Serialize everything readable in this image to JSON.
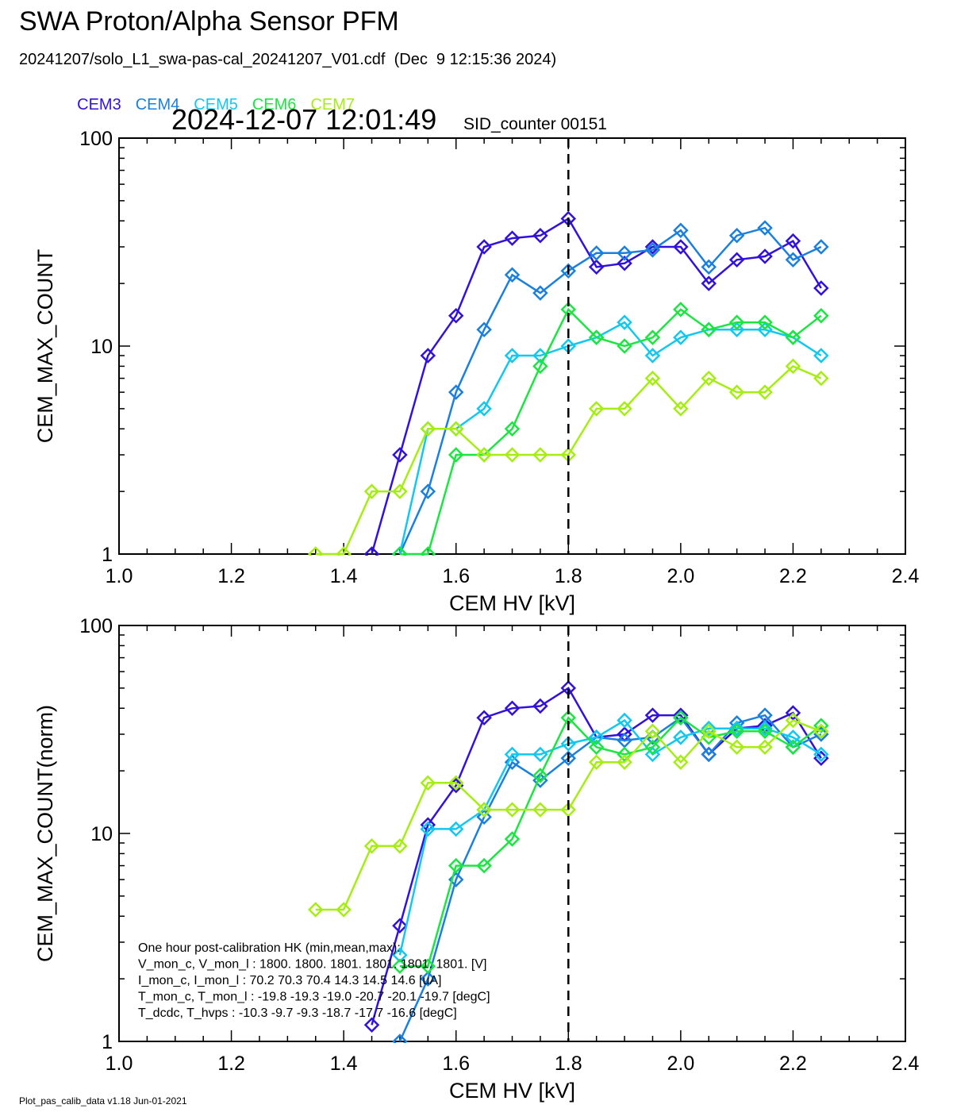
{
  "header": {
    "title": "SWA Proton/Alpha Sensor PFM",
    "subtitle": "20241207/solo_L1_swa-pas-cal_20241207_V01.cdf  (Dec  9 12:15:36 2024)",
    "timestamp": "2024-12-07 12:01:49",
    "sid_counter": "SID_counter 00151"
  },
  "legend": [
    {
      "name": "CEM3",
      "color": "#3311dd"
    },
    {
      "name": "CEM4",
      "color": "#1a80e0"
    },
    {
      "name": "CEM5",
      "color": "#11c8f0"
    },
    {
      "name": "CEM6",
      "color": "#19e640"
    },
    {
      "name": "CEM7",
      "color": "#a6ee11"
    }
  ],
  "hk_box": {
    "lines": [
      "One hour post-calibration HK (min,mean,max):",
      "V_mon_c, V_mon_l :    1800.  1800.  1801.       1801.  1801.  1801.  [V]",
      "I_mon_c,  I_mon_l :      70.2   70.3   70.4        14.3   14.5   14.6  [uA]",
      "T_mon_c, T_mon_l :   -19.8  -19.3  -19.0       -20.7  -20.1  -19.7  [degC]",
      "T_dcdc,    T_hvps :    -10.3   -9.7   -9.3        -18.7  -17.7  -16.6  [degC]"
    ]
  },
  "footer": "Plot_pas_calib_data v1.18 Jun-01-2021",
  "chart_data": [
    {
      "type": "line",
      "xlabel": "CEM HV [kV]",
      "ylabel": "CEM_MAX_COUNT",
      "xlim": [
        1.0,
        2.4
      ],
      "ylim": [
        1,
        100
      ],
      "yscale": "log",
      "x_ticks": [
        "1.0",
        "1.2",
        "1.4",
        "1.6",
        "1.8",
        "2.0",
        "2.2",
        "2.4"
      ],
      "y_ticks": [
        "1",
        "10",
        "100"
      ],
      "marker": "diamond",
      "vline": 1.8,
      "series": [
        {
          "name": "CEM3",
          "x": [
            1.45,
            1.5,
            1.55,
            1.6,
            1.65,
            1.7,
            1.75,
            1.8,
            1.85,
            1.9,
            1.95,
            2.0,
            2.05,
            2.1,
            2.15,
            2.2,
            2.25
          ],
          "y": [
            1,
            3,
            9,
            14,
            30,
            33,
            34,
            41,
            24,
            25,
            30,
            30,
            20,
            26,
            27,
            32,
            19
          ]
        },
        {
          "name": "CEM4",
          "x": [
            1.5,
            1.55,
            1.6,
            1.65,
            1.7,
            1.75,
            1.8,
            1.85,
            1.9,
            1.95,
            2.0,
            2.05,
            2.1,
            2.15,
            2.2,
            2.25
          ],
          "y": [
            1,
            2,
            6,
            12,
            22,
            18,
            23,
            28,
            28,
            29,
            36,
            24,
            34,
            37,
            26,
            30
          ]
        },
        {
          "name": "CEM5",
          "x": [
            1.5,
            1.55,
            1.6,
            1.65,
            1.7,
            1.75,
            1.8,
            1.85,
            1.9,
            1.95,
            2.0,
            2.05,
            2.1,
            2.15,
            2.2,
            2.25
          ],
          "y": [
            1,
            4,
            4,
            5,
            9,
            9,
            10,
            11,
            13,
            9,
            11,
            12,
            12,
            12,
            11,
            9
          ]
        },
        {
          "name": "CEM6",
          "x": [
            1.5,
            1.55,
            1.6,
            1.65,
            1.7,
            1.75,
            1.8,
            1.85,
            1.9,
            1.95,
            2.0,
            2.05,
            2.1,
            2.15,
            2.2,
            2.25
          ],
          "y": [
            1,
            1,
            3,
            3,
            4,
            8,
            15,
            11,
            10,
            11,
            15,
            12,
            13,
            13,
            11,
            14
          ]
        },
        {
          "name": "CEM7",
          "x": [
            1.35,
            1.4,
            1.45,
            1.5,
            1.55,
            1.6,
            1.65,
            1.7,
            1.75,
            1.8,
            1.85,
            1.9,
            1.95,
            2.0,
            2.05,
            2.1,
            2.15,
            2.2,
            2.25
          ],
          "y": [
            1,
            1,
            2,
            2,
            4,
            4,
            3,
            3,
            3,
            3,
            5,
            5,
            7,
            5,
            7,
            6,
            6,
            8,
            7
          ]
        }
      ]
    },
    {
      "type": "line",
      "xlabel": "CEM HV [kV]",
      "ylabel": "CEM_MAX_COUNT(norm)",
      "xlim": [
        1.0,
        2.4
      ],
      "ylim": [
        1,
        100
      ],
      "yscale": "log",
      "x_ticks": [
        "1.0",
        "1.2",
        "1.4",
        "1.6",
        "1.8",
        "2.0",
        "2.2",
        "2.4"
      ],
      "y_ticks": [
        "1",
        "10",
        "100"
      ],
      "marker": "diamond",
      "vline": 1.8,
      "series": [
        {
          "name": "CEM3",
          "x": [
            1.45,
            1.5,
            1.55,
            1.6,
            1.65,
            1.7,
            1.75,
            1.8,
            1.85,
            1.9,
            1.95,
            2.0,
            2.05,
            2.1,
            2.15,
            2.2,
            2.25
          ],
          "y": [
            1.2,
            3.6,
            11,
            17,
            36,
            40,
            41,
            50,
            29,
            30,
            37,
            37,
            24,
            32,
            33,
            38,
            23
          ]
        },
        {
          "name": "CEM4",
          "x": [
            1.5,
            1.55,
            1.6,
            1.65,
            1.7,
            1.75,
            1.8,
            1.85,
            1.9,
            1.95,
            2.0,
            2.05,
            2.1,
            2.15,
            2.2,
            2.25
          ],
          "y": [
            1,
            2,
            6,
            12,
            22,
            18,
            23,
            29,
            28,
            29,
            36,
            24,
            34,
            37,
            26,
            30
          ]
        },
        {
          "name": "CEM5",
          "x": [
            1.5,
            1.55,
            1.6,
            1.65,
            1.7,
            1.75,
            1.8,
            1.85,
            1.9,
            1.95,
            2.0,
            2.05,
            2.1,
            2.15,
            2.2,
            2.25
          ],
          "y": [
            2.6,
            10.5,
            10.5,
            13,
            24,
            24,
            27,
            29,
            35,
            24,
            29,
            32,
            32,
            32,
            29,
            24
          ]
        },
        {
          "name": "CEM6",
          "x": [
            1.5,
            1.55,
            1.6,
            1.65,
            1.7,
            1.75,
            1.8,
            1.85,
            1.9,
            1.95,
            2.0,
            2.05,
            2.1,
            2.15,
            2.2,
            2.25
          ],
          "y": [
            2.3,
            2.3,
            7,
            7,
            9.4,
            19,
            36,
            26,
            24,
            26,
            36,
            29,
            31,
            31,
            26,
            33
          ]
        },
        {
          "name": "CEM7",
          "x": [
            1.35,
            1.4,
            1.45,
            1.5,
            1.55,
            1.6,
            1.65,
            1.7,
            1.75,
            1.8,
            1.85,
            1.9,
            1.95,
            2.0,
            2.05,
            2.1,
            2.15,
            2.2,
            2.25
          ],
          "y": [
            4.3,
            4.3,
            8.7,
            8.7,
            17.5,
            17.5,
            13,
            13,
            13,
            13,
            22,
            22,
            31,
            22,
            31,
            26,
            26,
            35,
            31
          ]
        }
      ]
    }
  ]
}
